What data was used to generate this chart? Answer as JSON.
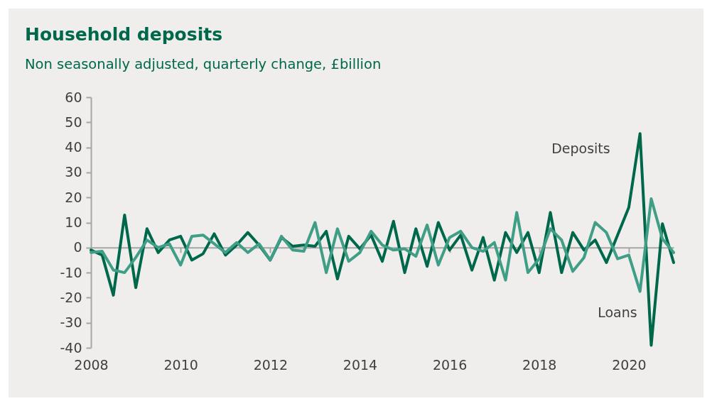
{
  "chart_data": {
    "type": "line",
    "title": "Household deposits",
    "subtitle": "Non seasonally adjusted, quarterly change, £billion",
    "x": [
      2008,
      2008.25,
      2008.5,
      2008.75,
      2009,
      2009.25,
      2009.5,
      2009.75,
      2010,
      2010.25,
      2010.5,
      2010.75,
      2011,
      2011.25,
      2011.5,
      2011.75,
      2012,
      2012.25,
      2012.5,
      2012.75,
      2013,
      2013.25,
      2013.5,
      2013.75,
      2014,
      2014.25,
      2014.5,
      2014.75,
      2015,
      2015.25,
      2015.5,
      2015.75,
      2016,
      2016.25,
      2016.5,
      2016.75,
      2017,
      2017.25,
      2017.5,
      2017.75,
      2018,
      2018.25,
      2018.5,
      2018.75,
      2019,
      2019.25,
      2019.5,
      2019.75,
      2020,
      2020.25,
      2020.5,
      2020.75,
      2021
    ],
    "series": [
      {
        "name": "Deposits",
        "color": "#00684a",
        "values": [
          -1,
          -3,
          -19,
          13,
          -16,
          7.5,
          -2,
          3,
          4.5,
          -5,
          -2.5,
          5.5,
          -3,
          1,
          6,
          1,
          -5,
          4,
          0.5,
          1,
          0.5,
          6.5,
          -12.5,
          4.5,
          -0.5,
          5,
          -5.5,
          10.5,
          -10,
          7.5,
          -7.5,
          10,
          -1,
          5,
          -9,
          4,
          -13,
          6,
          -2,
          6,
          -10,
          14,
          -10,
          6,
          -1,
          3,
          -6,
          5,
          16,
          45.5,
          -39,
          9.5,
          -6
        ]
      },
      {
        "name": "Loans",
        "color": "#3f9e85",
        "values": [
          -2,
          -1.5,
          -9,
          -10,
          -4,
          3,
          0,
          1.5,
          -7,
          4.5,
          5,
          1.5,
          -2,
          2,
          -2,
          1.5,
          -5,
          4.5,
          -1,
          -1.5,
          10,
          -10,
          7.5,
          -5.5,
          -2,
          6.5,
          1,
          -1,
          -0.5,
          -3.5,
          9,
          -7,
          4,
          6.5,
          0,
          -1.5,
          2,
          -13,
          14,
          -10,
          -4.5,
          7.5,
          3,
          -9.5,
          -4,
          10,
          6,
          -4.5,
          -3,
          -17.5,
          19.5,
          3.5,
          -2
        ]
      }
    ],
    "xlim": [
      2008,
      2021
    ],
    "xticks": [
      2008,
      2010,
      2012,
      2014,
      2016,
      2018,
      2020
    ],
    "ylim": [
      -40,
      60
    ],
    "yticks": [
      -40,
      -30,
      -20,
      -10,
      0,
      10,
      20,
      30,
      40,
      50,
      60
    ],
    "legend": false,
    "marker": "none",
    "line_style": "solid"
  }
}
